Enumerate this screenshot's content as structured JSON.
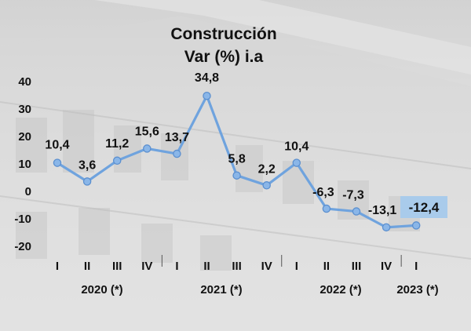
{
  "chart_data": {
    "type": "line",
    "title_line1": "Construcción",
    "title_line2": "Var (%) i.a",
    "ylim": [
      -20,
      40
    ],
    "yticks": [
      -20,
      -10,
      0,
      10,
      20,
      30,
      40
    ],
    "categories": [
      "I",
      "II",
      "III",
      "IV",
      "I",
      "II",
      "III",
      "IV",
      "I",
      "II",
      "III",
      "IV",
      "I"
    ],
    "year_groups": [
      {
        "label": "2020 (*)",
        "span": [
          0,
          3
        ]
      },
      {
        "label": "2021 (*)",
        "span": [
          4,
          7
        ]
      },
      {
        "label": "2022 (*)",
        "span": [
          8,
          11
        ]
      },
      {
        "label": "2023 (*)",
        "span": [
          12,
          12
        ]
      }
    ],
    "values": [
      10.4,
      3.6,
      11.2,
      15.6,
      13.7,
      34.8,
      5.8,
      2.2,
      10.4,
      -6.3,
      -7.3,
      -13.1,
      -12.4
    ],
    "value_labels": [
      "10,4",
      "3,6",
      "11,2",
      "15,6",
      "13,7",
      "34,8",
      "5,8",
      "2,2",
      "10,4",
      "-6,3",
      "-7,3",
      "-13,1",
      "-12,4"
    ],
    "highlight_index": 12,
    "colors": {
      "line": "#6fa3de",
      "marker": "#8ab6e8",
      "marker_stroke": "#5b8fcf",
      "highlight_box": "#a9cbeb",
      "text": "#111111"
    }
  }
}
